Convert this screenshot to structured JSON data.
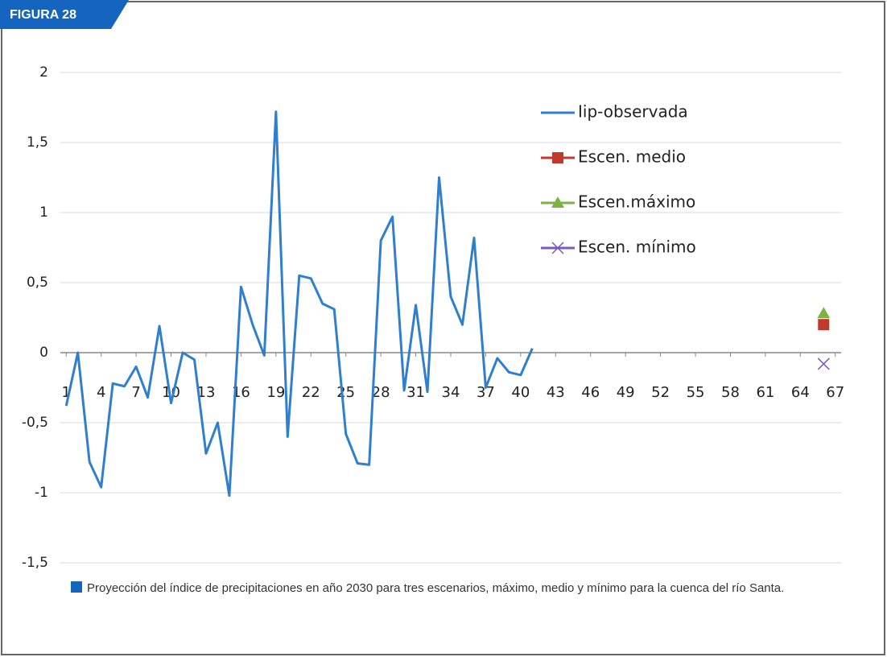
{
  "figure_label": "FIGURA 28",
  "caption": "Proyección del índice de precipitaciones en año  2030 para tres escenarios, máximo, medio y mínimo para la cuenca del río Santa.",
  "chart_data": {
    "type": "line",
    "series": [
      {
        "name": "Iip-observada",
        "color": "#2e7fd0",
        "marker": "none",
        "x": [
          1,
          2,
          3,
          4,
          5,
          6,
          7,
          8,
          9,
          10,
          11,
          12,
          13,
          14,
          15,
          16,
          17,
          18,
          19,
          20,
          21,
          22,
          23,
          24,
          25,
          26,
          27,
          28,
          29,
          30,
          31,
          32,
          33,
          34,
          35,
          36,
          37,
          38,
          39,
          40,
          41
        ],
        "values": [
          -0.38,
          0,
          -0.78,
          -0.96,
          -0.22,
          -0.24,
          -0.1,
          -0.32,
          0.19,
          -0.36,
          0,
          -0.05,
          -0.72,
          -0.5,
          -1.02,
          0.47,
          0.2,
          -0.02,
          1.72,
          -0.6,
          0.55,
          0.53,
          0.35,
          0.31,
          -0.58,
          -0.79,
          -0.8,
          0.8,
          0.97,
          -0.27,
          0.34,
          -0.28,
          1.25,
          0.4,
          0.2,
          0.82,
          -0.25,
          -0.04,
          -0.14,
          -0.16,
          0.03
        ]
      },
      {
        "name": "Escen. medio",
        "color": "#c0392b",
        "marker": "square",
        "x": [
          66
        ],
        "values": [
          0.2
        ]
      },
      {
        "name": "Escen.máximo",
        "color": "#7cb342",
        "marker": "triangle",
        "x": [
          66
        ],
        "values": [
          0.28
        ]
      },
      {
        "name": "Escen. mínimo",
        "color": "#7e57c2",
        "marker": "x",
        "x": [
          66
        ],
        "values": [
          -0.08
        ]
      }
    ],
    "xlim": [
      0.5,
      67.5
    ],
    "xticks": [
      1,
      4,
      7,
      10,
      13,
      16,
      19,
      22,
      25,
      28,
      31,
      34,
      37,
      40,
      43,
      46,
      49,
      52,
      55,
      58,
      61,
      64,
      67
    ],
    "ylim": [
      -1.5,
      2
    ],
    "yticks": [
      {
        "value": -1.5,
        "label": "-1,5"
      },
      -1,
      {
        "value": -0.5,
        "label": "-0,5"
      },
      0,
      {
        "value": 0.5,
        "label": "0,5"
      },
      1,
      {
        "value": 1.5,
        "label": "1,5"
      },
      2
    ],
    "grid": true,
    "legend": "top-right"
  }
}
